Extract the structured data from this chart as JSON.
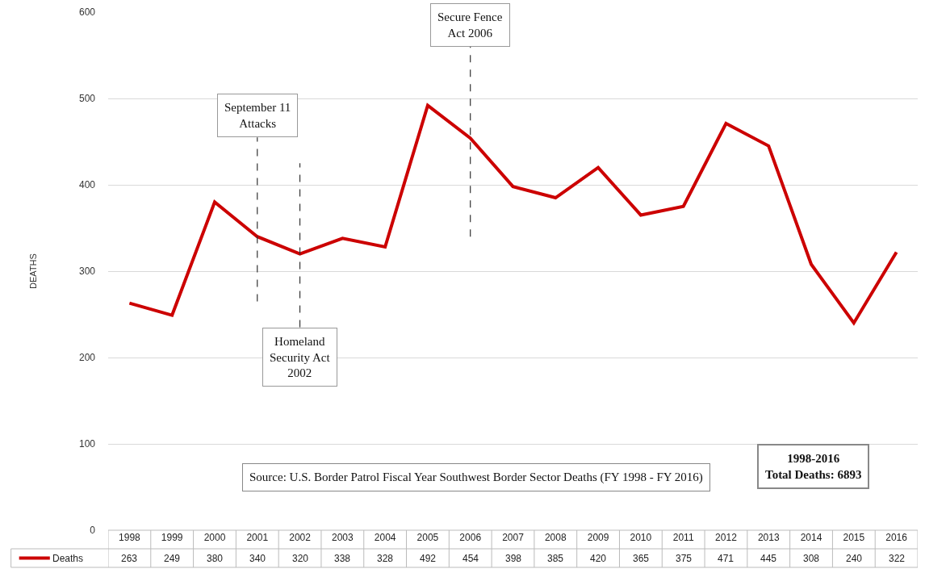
{
  "chart_data": {
    "type": "line",
    "ylabel": "DEATHS",
    "categories": [
      "1998",
      "1999",
      "2000",
      "2001",
      "2002",
      "2003",
      "2004",
      "2005",
      "2006",
      "2007",
      "2008",
      "2009",
      "2010",
      "2011",
      "2012",
      "2013",
      "2014",
      "2015",
      "2016"
    ],
    "series": [
      {
        "name": "Deaths",
        "color": "#cc0000",
        "values": [
          263,
          249,
          380,
          340,
          320,
          338,
          328,
          492,
          454,
          398,
          385,
          420,
          365,
          375,
          471,
          445,
          308,
          240,
          322
        ]
      }
    ],
    "ylim": [
      0,
      600
    ],
    "yticks": [
      0,
      100,
      200,
      300,
      400,
      500,
      600
    ],
    "grid": "y",
    "legend": "bottom left",
    "marker": "none",
    "line_style": "solid",
    "data_labels": true,
    "ref_lines": [
      {
        "axis": "x",
        "value": "2001",
        "label": "September 11\nAttacks",
        "line_style": "dashed",
        "color": "#333333"
      },
      {
        "axis": "x",
        "value": "2002",
        "label": "Homeland\nSecurity Act\n2002",
        "line_style": "dashed",
        "color": "#333333"
      },
      {
        "axis": "x",
        "value": "2006",
        "label": "Secure Fence\nAct 2006",
        "line_style": "dashed",
        "color": "#333333"
      }
    ],
    "annotations": [
      "Source: U.S. Border Patrol Fiscal Year Southwest Border Sector Deaths (FY 1998 - FY 2016)",
      "1998-2016\nTotal Deaths: 6893"
    ]
  }
}
